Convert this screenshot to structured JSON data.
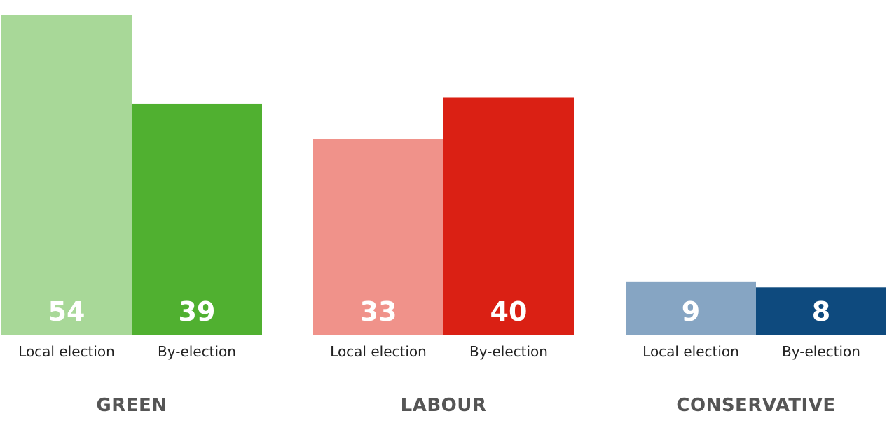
{
  "chart_data": {
    "type": "bar",
    "title": "",
    "xlabel": "",
    "ylabel": "",
    "ylim": [
      0,
      54
    ],
    "grid": false,
    "value_labels": true,
    "groups": [
      {
        "name": "GREEN",
        "bars": [
          {
            "label": "Local election",
            "value": 54,
            "color": "#A8D898"
          },
          {
            "label": "By-election",
            "value": 39,
            "color": "#50B030"
          }
        ]
      },
      {
        "name": "LABOUR",
        "bars": [
          {
            "label": "Local election",
            "value": 33,
            "color": "#F0928A"
          },
          {
            "label": "By-election",
            "value": 40,
            "color": "#DA2014"
          }
        ]
      },
      {
        "name": "CONSERVATIVE",
        "bars": [
          {
            "label": "Local election",
            "value": 9,
            "color": "#86A5C3"
          },
          {
            "label": "By-election",
            "value": 8,
            "color": "#0E4A7E"
          }
        ]
      }
    ]
  }
}
